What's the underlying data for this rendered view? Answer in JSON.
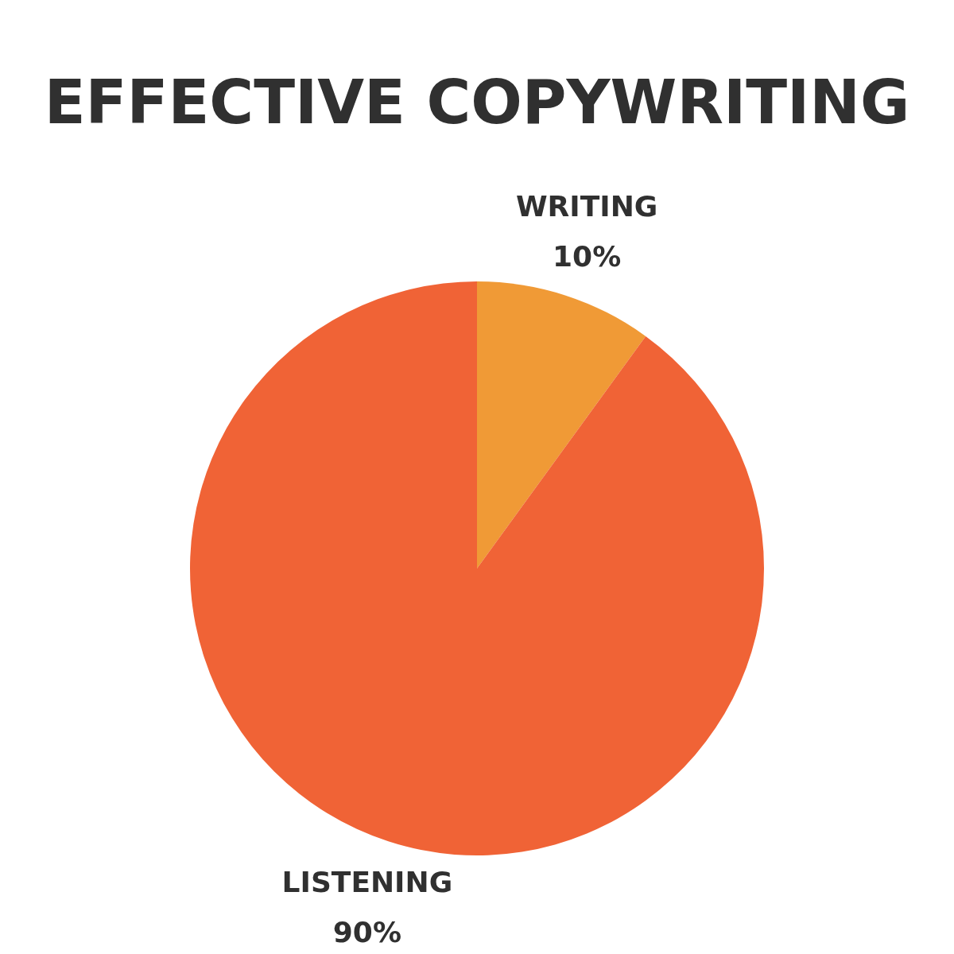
{
  "chart_data": {
    "type": "pie",
    "title": "EFFECTIVE COPYWRITING",
    "categories": [
      "WRITING",
      "LISTENING"
    ],
    "values": [
      10,
      90
    ],
    "colors": [
      "#f09a36",
      "#f06336"
    ],
    "value_labels": [
      "10%",
      "90%"
    ]
  }
}
